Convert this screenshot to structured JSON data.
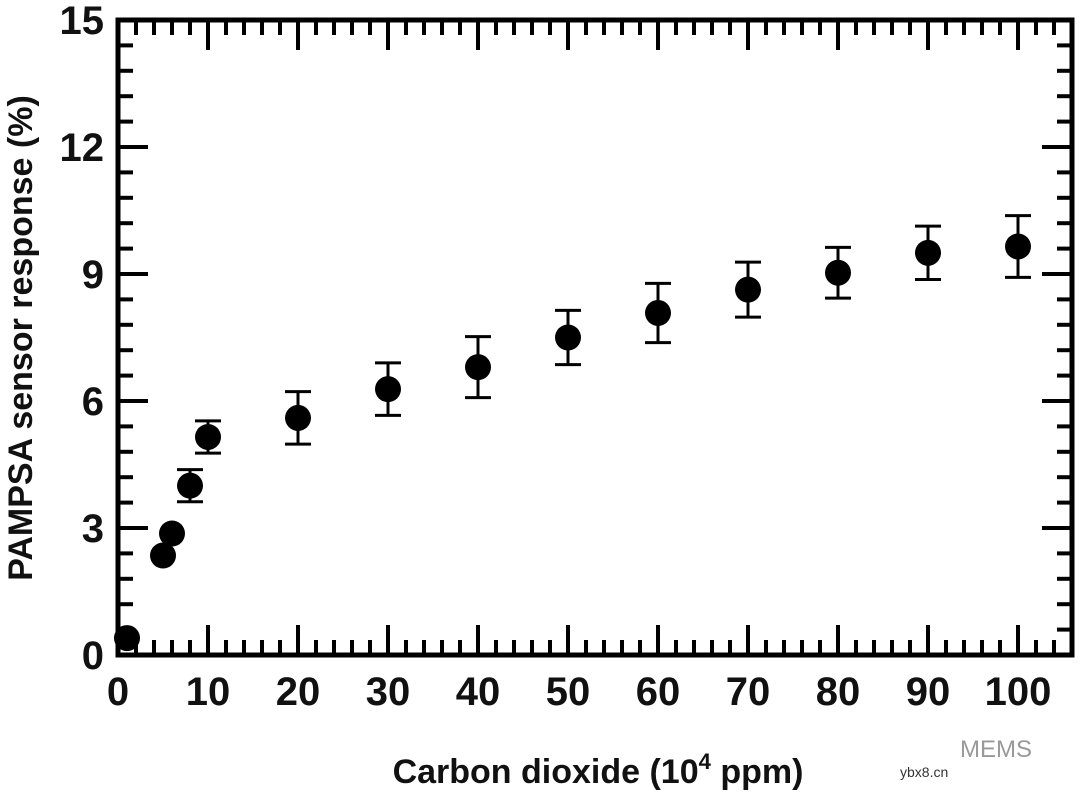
{
  "chart_data": {
    "type": "scatter",
    "title": "",
    "xlabel": "Carbon dioxide (10",
    "xlabel_sup": "4",
    "xlabel_tail": " ppm)",
    "ylabel": "PAMPSA sensor response (%)",
    "xlim": [
      0,
      106
    ],
    "ylim": [
      0,
      15
    ],
    "xticks": [
      0,
      10,
      20,
      30,
      40,
      50,
      60,
      70,
      80,
      90,
      100
    ],
    "yticks": [
      0,
      3,
      6,
      9,
      12,
      15
    ],
    "x_minor_step": 2,
    "y_minor_step": 0.6,
    "grid": false,
    "marker_color": "#000000",
    "series": [
      {
        "x": [
          1,
          5,
          6,
          8,
          10,
          20,
          30,
          40,
          50,
          60,
          70,
          80,
          90,
          100
        ],
        "y": [
          0.4,
          2.35,
          2.87,
          4.0,
          5.15,
          5.6,
          6.28,
          6.8,
          7.5,
          8.08,
          8.63,
          9.03,
          9.5,
          9.65
        ],
        "err": [
          0,
          0,
          0,
          0.38,
          0.38,
          0.62,
          0.62,
          0.72,
          0.64,
          0.7,
          0.65,
          0.6,
          0.63,
          0.73
        ]
      }
    ]
  },
  "watermark": {
    "brand": "MEMS",
    "site": "ybx8.cn"
  }
}
